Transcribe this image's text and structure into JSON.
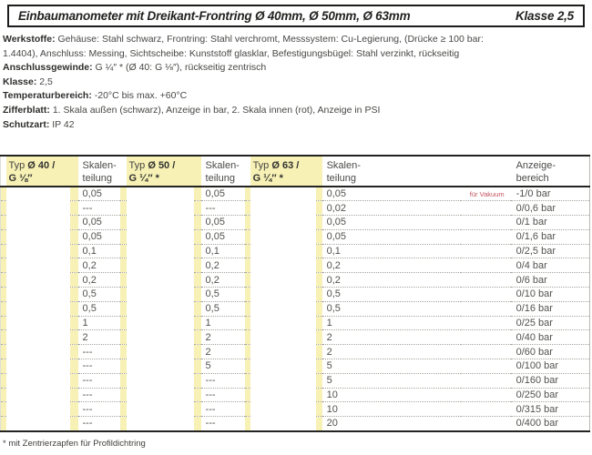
{
  "header": {
    "title": "Einbaumanometer mit Dreikant-Frontring Ø 40mm, Ø 50mm, Ø 63mm",
    "class_label": "Klasse 2,5"
  },
  "specs": [
    {
      "label": "Werkstoffe:",
      "text": "Gehäuse: Stahl schwarz, Frontring: Stahl verchromt, Messsystem: Cu-Legierung, (Drücke ≥ 100 bar:"
    },
    {
      "label": "",
      "text": "1.4404), Anschluss: Messing, Sichtscheibe: Kunststoff glasklar, Befestigungsbügel: Stahl verzinkt, rückseitig"
    },
    {
      "label": "Anschlussgewinde:",
      "text": "G ¼″ * (Ø 40: G ⅛″), rückseitig zentrisch"
    },
    {
      "label": "Klasse:",
      "text": "2,5"
    },
    {
      "label": "Temperaturbereich:",
      "text": "-20°C bis max. +60°C"
    },
    {
      "label": "Zifferblatt:",
      "text": "1. Skala außen (schwarz), Anzeige in bar, 2. Skala innen (rot), Anzeige in PSI"
    },
    {
      "label": "Schutzart:",
      "text": "IP 42"
    }
  ],
  "table_header": {
    "typ_prefix": "Typ",
    "typ40_size": "Ø 40 /",
    "typ40_thread": "G ⅛″",
    "typ50_size": "Ø 50 /",
    "typ50_thread": "G ¼″ *",
    "typ63_size": "Ø 63 /",
    "typ63_thread": "G ¼″ *",
    "scale_line1": "Skalen-",
    "scale_line2": "teilung",
    "range_line1": "Anzeige-",
    "range_line2": "bereich"
  },
  "table_rows": [
    {
      "d40": "0,05",
      "d50": "0,05",
      "d63": "0,05",
      "note": "für Vakuum",
      "range": "-1/0 bar"
    },
    {
      "d40": "---",
      "d50": "---",
      "d63": "0,02",
      "note": "",
      "range": "0/0,6 bar"
    },
    {
      "d40": "0,05",
      "d50": "0,05",
      "d63": "0,05",
      "note": "",
      "range": "0/1 bar"
    },
    {
      "d40": "0,05",
      "d50": "0,05",
      "d63": "0,05",
      "note": "",
      "range": "0/1,6 bar"
    },
    {
      "d40": "0,1",
      "d50": "0,1",
      "d63": "0,1",
      "note": "",
      "range": "0/2,5 bar"
    },
    {
      "d40": "0,2",
      "d50": "0,2",
      "d63": "0,2",
      "note": "",
      "range": "0/4 bar"
    },
    {
      "d40": "0,2",
      "d50": "0,2",
      "d63": "0,2",
      "note": "",
      "range": "0/6 bar"
    },
    {
      "d40": "0,5",
      "d50": "0,5",
      "d63": "0,5",
      "note": "",
      "range": "0/10 bar"
    },
    {
      "d40": "0,5",
      "d50": "0,5",
      "d63": "0,5",
      "note": "",
      "range": "0/16 bar"
    },
    {
      "d40": "1",
      "d50": "1",
      "d63": "1",
      "note": "",
      "range": "0/25 bar"
    },
    {
      "d40": "2",
      "d50": "2",
      "d63": "2",
      "note": "",
      "range": "0/40 bar"
    },
    {
      "d40": "---",
      "d50": "2",
      "d63": "2",
      "note": "",
      "range": "0/60 bar"
    },
    {
      "d40": "---",
      "d50": "5",
      "d63": "5",
      "note": "",
      "range": "0/100 bar"
    },
    {
      "d40": "---",
      "d50": "---",
      "d63": "5",
      "note": "",
      "range": "0/160 bar"
    },
    {
      "d40": "---",
      "d50": "---",
      "d63": "10",
      "note": "",
      "range": "0/250 bar"
    },
    {
      "d40": "---",
      "d50": "---",
      "d63": "10",
      "note": "",
      "range": "0/315 bar"
    },
    {
      "d40": "---",
      "d50": "---",
      "d63": "20",
      "note": "",
      "range": "0/400 bar"
    }
  ],
  "footnote": "* mit Zentrierzapfen für Profildichtring",
  "colors": {
    "yellow": "#f7f1b5",
    "red": "#c4525e",
    "line": "#232321",
    "text": "#3c3c3a"
  }
}
